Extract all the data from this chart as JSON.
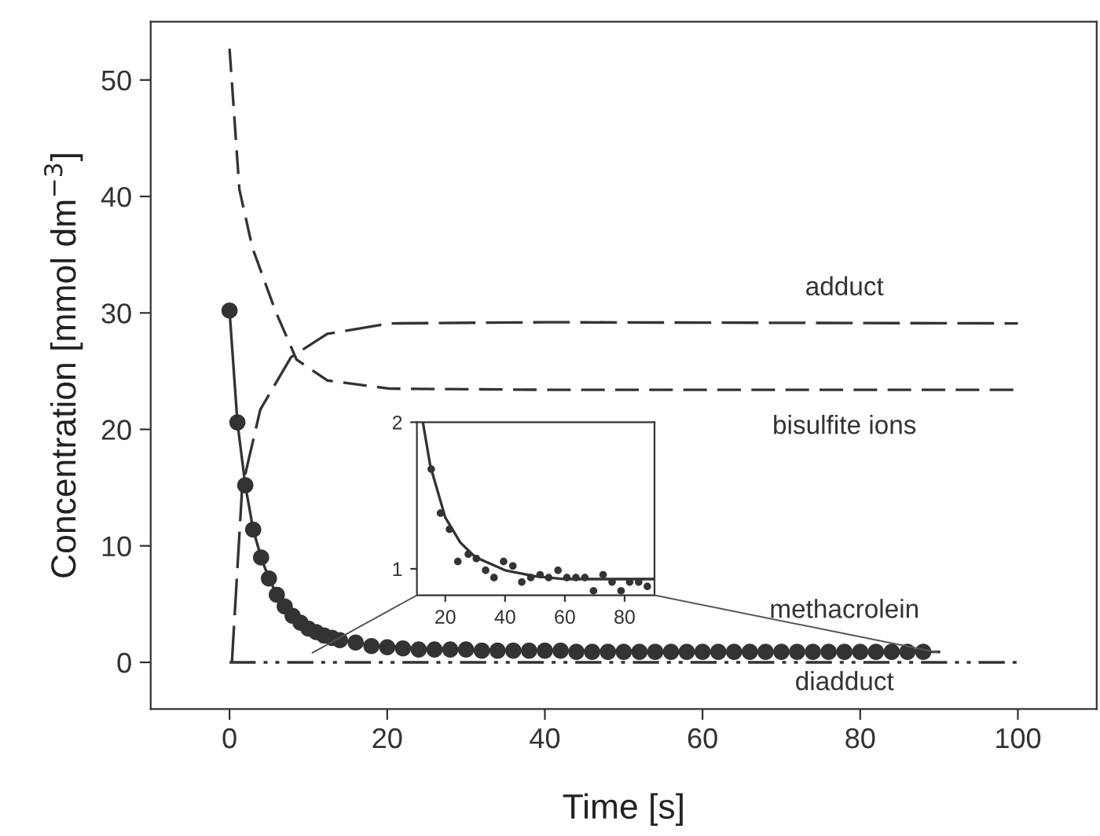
{
  "chart_data": [
    {
      "type": "line",
      "xlabel": "Time [s]",
      "ylabel": "Concentration [mmol dm$^{−3}$]",
      "xlim": [
        -10,
        110
      ],
      "ylim": [
        -4,
        55
      ],
      "xticks": [
        0,
        20,
        40,
        60,
        80,
        100
      ],
      "yticks": [
        0,
        10,
        20,
        30,
        40,
        50
      ],
      "grid": false,
      "series": [
        {
          "name": "adduct",
          "type": "line",
          "line_style": "dashed",
          "color": "#333333",
          "x": [
            0.3,
            1.6,
            3.9,
            7.8,
            12.4,
            20.3,
            40,
            100
          ],
          "values": [
            0,
            15,
            21.7,
            26.2,
            28.2,
            29.1,
            29.2,
            29.1
          ]
        },
        {
          "name": "bisulfite ions",
          "type": "line",
          "line_style": "dashed",
          "color": "#333333",
          "x": [
            0,
            1.25,
            2.9,
            5.8,
            8.5,
            12.4,
            20.3,
            40,
            100
          ],
          "values": [
            52.7,
            40.6,
            35.6,
            30.2,
            26,
            24.2,
            23.5,
            23.4,
            23.4
          ]
        },
        {
          "name": "methacrolein",
          "type": "line",
          "line_style": "solid",
          "color": "#333333",
          "x": [
            0,
            1,
            2,
            3,
            4,
            5,
            6,
            7,
            8,
            9,
            10,
            12,
            14,
            16,
            18,
            20,
            25,
            30,
            40,
            50,
            60,
            90
          ],
          "values": [
            30.2,
            20.6,
            15.2,
            11.4,
            9,
            7.2,
            5.8,
            4.8,
            4,
            3.4,
            2.9,
            2.3,
            1.9,
            1.7,
            1.5,
            1.4,
            1.2,
            1.1,
            1,
            1,
            0.9,
            0.9
          ]
        },
        {
          "type": "scatter",
          "marker": "circle",
          "color": "#333333",
          "x": [
            0,
            1,
            2,
            3,
            4,
            5,
            6,
            7,
            8,
            9,
            10,
            11,
            12,
            13,
            14,
            16,
            18,
            20,
            22,
            24,
            26,
            28,
            30,
            32,
            34,
            36,
            38,
            40,
            42,
            44,
            46,
            48,
            50,
            52,
            54,
            56,
            58,
            60,
            62,
            64,
            66,
            68,
            70,
            72,
            74,
            76,
            78,
            80,
            82,
            84,
            86,
            88
          ],
          "values": [
            30.2,
            20.6,
            15.2,
            11.4,
            9,
            7.2,
            5.8,
            4.8,
            4,
            3.4,
            2.9,
            2.6,
            2.3,
            2.1,
            1.9,
            1.7,
            1.4,
            1.3,
            1.2,
            1.1,
            1.1,
            1.1,
            1.1,
            1,
            1,
            1,
            1,
            1,
            1,
            0.9,
            0.9,
            0.9,
            0.9,
            0.9,
            0.9,
            0.9,
            0.9,
            0.9,
            0.9,
            0.9,
            0.9,
            0.9,
            0.9,
            0.9,
            0.9,
            0.9,
            0.9,
            0.9,
            0.9,
            0.9,
            0.9,
            0.9
          ]
        },
        {
          "name": "diadduct",
          "type": "line",
          "line_style": "dashdotdot",
          "color": "#333333",
          "x": [
            0,
            100
          ],
          "values": [
            0,
            0
          ]
        }
      ]
    },
    {
      "type": "line",
      "xlim": [
        10.5,
        90
      ],
      "ylim": [
        0.82,
        2
      ],
      "xticks": [
        20,
        40,
        60,
        80
      ],
      "yticks": [
        1,
        2
      ],
      "grid": false,
      "series": [
        {
          "type": "line",
          "line_style": "solid",
          "color": "#333333",
          "x": [
            12.5,
            15,
            20,
            25,
            30,
            40,
            50,
            60,
            90
          ],
          "values": [
            2.0,
            1.7,
            1.35,
            1.18,
            1.08,
            0.99,
            0.95,
            0.93,
            0.93
          ]
        },
        {
          "type": "scatter",
          "marker": "circle",
          "color": "#333333",
          "x": [
            15.3,
            18.4,
            21.4,
            24.2,
            27.7,
            30.4,
            33.5,
            36.3,
            39.5,
            42.6,
            45.6,
            48.6,
            51.7,
            54.6,
            57.7,
            60.7,
            63.7,
            66.7,
            69.6,
            72.8,
            75.8,
            78.8,
            81.7,
            84.7,
            87.6
          ],
          "values": [
            1.68,
            1.38,
            1.27,
            1.05,
            1.1,
            1.07,
            0.99,
            0.94,
            1.05,
            1.02,
            0.91,
            0.94,
            0.96,
            0.94,
            0.99,
            0.94,
            0.94,
            0.94,
            0.85,
            0.96,
            0.91,
            0.85,
            0.91,
            0.91,
            0.88
          ]
        }
      ]
    }
  ]
}
